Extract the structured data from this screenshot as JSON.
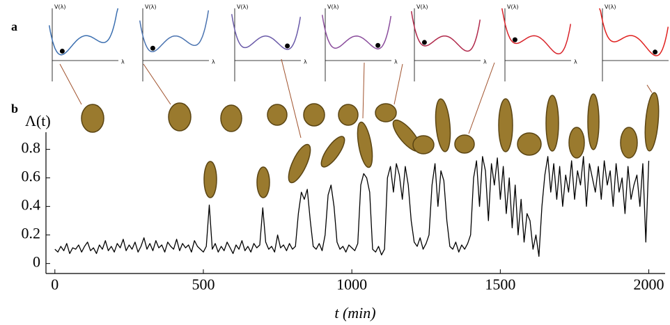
{
  "panel_labels": [
    "a",
    "b"
  ],
  "panel_a": {
    "y_label": "V(λ)",
    "x_label": "λ"
  },
  "chart_data": {
    "type": "line",
    "y_label": "Λ(t)",
    "x_label": "t (min)",
    "xlim": [
      -30,
      2055
    ],
    "ylim": [
      -0.07,
      0.92
    ],
    "xticks": [
      0,
      500,
      1000,
      1500,
      2000
    ],
    "yticks": [
      0,
      0.2,
      0.4,
      0.6,
      0.8
    ],
    "x": [
      0,
      10,
      20,
      30,
      40,
      50,
      60,
      70,
      80,
      90,
      100,
      110,
      120,
      130,
      140,
      150,
      160,
      170,
      180,
      190,
      200,
      210,
      220,
      230,
      240,
      250,
      260,
      270,
      280,
      290,
      300,
      310,
      320,
      330,
      340,
      350,
      360,
      370,
      380,
      390,
      400,
      410,
      420,
      430,
      440,
      450,
      460,
      470,
      480,
      490,
      500,
      510,
      520,
      530,
      540,
      550,
      560,
      570,
      580,
      590,
      600,
      610,
      620,
      630,
      640,
      650,
      660,
      670,
      680,
      690,
      700,
      710,
      720,
      730,
      740,
      750,
      760,
      770,
      780,
      790,
      800,
      810,
      820,
      830,
      840,
      850,
      860,
      870,
      880,
      890,
      900,
      910,
      920,
      930,
      940,
      950,
      960,
      970,
      980,
      990,
      1000,
      1010,
      1020,
      1030,
      1040,
      1050,
      1060,
      1070,
      1080,
      1090,
      1100,
      1110,
      1120,
      1130,
      1140,
      1150,
      1160,
      1170,
      1180,
      1190,
      1200,
      1210,
      1220,
      1230,
      1240,
      1250,
      1260,
      1270,
      1280,
      1290,
      1300,
      1310,
      1320,
      1330,
      1340,
      1350,
      1360,
      1370,
      1380,
      1390,
      1400,
      1410,
      1420,
      1430,
      1440,
      1450,
      1460,
      1470,
      1480,
      1490,
      1500,
      1510,
      1520,
      1530,
      1540,
      1550,
      1560,
      1570,
      1580,
      1590,
      1600,
      1610,
      1620,
      1630,
      1640,
      1650,
      1660,
      1670,
      1680,
      1690,
      1700,
      1710,
      1720,
      1730,
      1740,
      1750,
      1760,
      1770,
      1780,
      1790,
      1800,
      1810,
      1820,
      1830,
      1840,
      1850,
      1860,
      1870,
      1880,
      1890,
      1900,
      1910,
      1920,
      1930,
      1940,
      1950,
      1960,
      1970,
      1980,
      1990,
      2000
    ],
    "series": [
      {
        "color": "#000000",
        "values": [
          0.1,
          0.08,
          0.12,
          0.09,
          0.14,
          0.07,
          0.11,
          0.1,
          0.13,
          0.08,
          0.12,
          0.15,
          0.09,
          0.11,
          0.07,
          0.13,
          0.1,
          0.16,
          0.09,
          0.12,
          0.08,
          0.14,
          0.11,
          0.17,
          0.09,
          0.13,
          0.1,
          0.15,
          0.08,
          0.12,
          0.18,
          0.1,
          0.14,
          0.09,
          0.16,
          0.11,
          0.13,
          0.08,
          0.15,
          0.12,
          0.1,
          0.17,
          0.09,
          0.14,
          0.11,
          0.13,
          0.08,
          0.16,
          0.12,
          0.1,
          0.08,
          0.12,
          0.41,
          0.1,
          0.14,
          0.08,
          0.12,
          0.09,
          0.15,
          0.11,
          0.07,
          0.13,
          0.1,
          0.16,
          0.09,
          0.12,
          0.08,
          0.14,
          0.11,
          0.13,
          0.39,
          0.15,
          0.1,
          0.12,
          0.08,
          0.2,
          0.11,
          0.13,
          0.09,
          0.14,
          0.1,
          0.12,
          0.35,
          0.5,
          0.45,
          0.52,
          0.3,
          0.12,
          0.1,
          0.14,
          0.09,
          0.2,
          0.48,
          0.55,
          0.4,
          0.15,
          0.1,
          0.12,
          0.08,
          0.13,
          0.11,
          0.09,
          0.14,
          0.55,
          0.63,
          0.6,
          0.5,
          0.1,
          0.08,
          0.12,
          0.06,
          0.1,
          0.6,
          0.68,
          0.5,
          0.7,
          0.62,
          0.45,
          0.68,
          0.55,
          0.3,
          0.15,
          0.12,
          0.18,
          0.1,
          0.14,
          0.2,
          0.55,
          0.7,
          0.4,
          0.65,
          0.58,
          0.3,
          0.12,
          0.1,
          0.15,
          0.08,
          0.13,
          0.1,
          0.14,
          0.2,
          0.6,
          0.72,
          0.4,
          0.75,
          0.65,
          0.3,
          0.7,
          0.55,
          0.74,
          0.45,
          0.68,
          0.35,
          0.6,
          0.25,
          0.55,
          0.2,
          0.45,
          0.15,
          0.35,
          0.3,
          0.1,
          0.2,
          0.05,
          0.4,
          0.62,
          0.75,
          0.5,
          0.7,
          0.45,
          0.68,
          0.4,
          0.62,
          0.5,
          0.72,
          0.45,
          0.65,
          0.55,
          0.75,
          0.4,
          0.7,
          0.6,
          0.5,
          0.68,
          0.45,
          0.72,
          0.55,
          0.65,
          0.4,
          0.7,
          0.5,
          0.6,
          0.35,
          0.68,
          0.45,
          0.55,
          0.62,
          0.4,
          0.7,
          0.15,
          0.72
        ]
      }
    ]
  }
}
